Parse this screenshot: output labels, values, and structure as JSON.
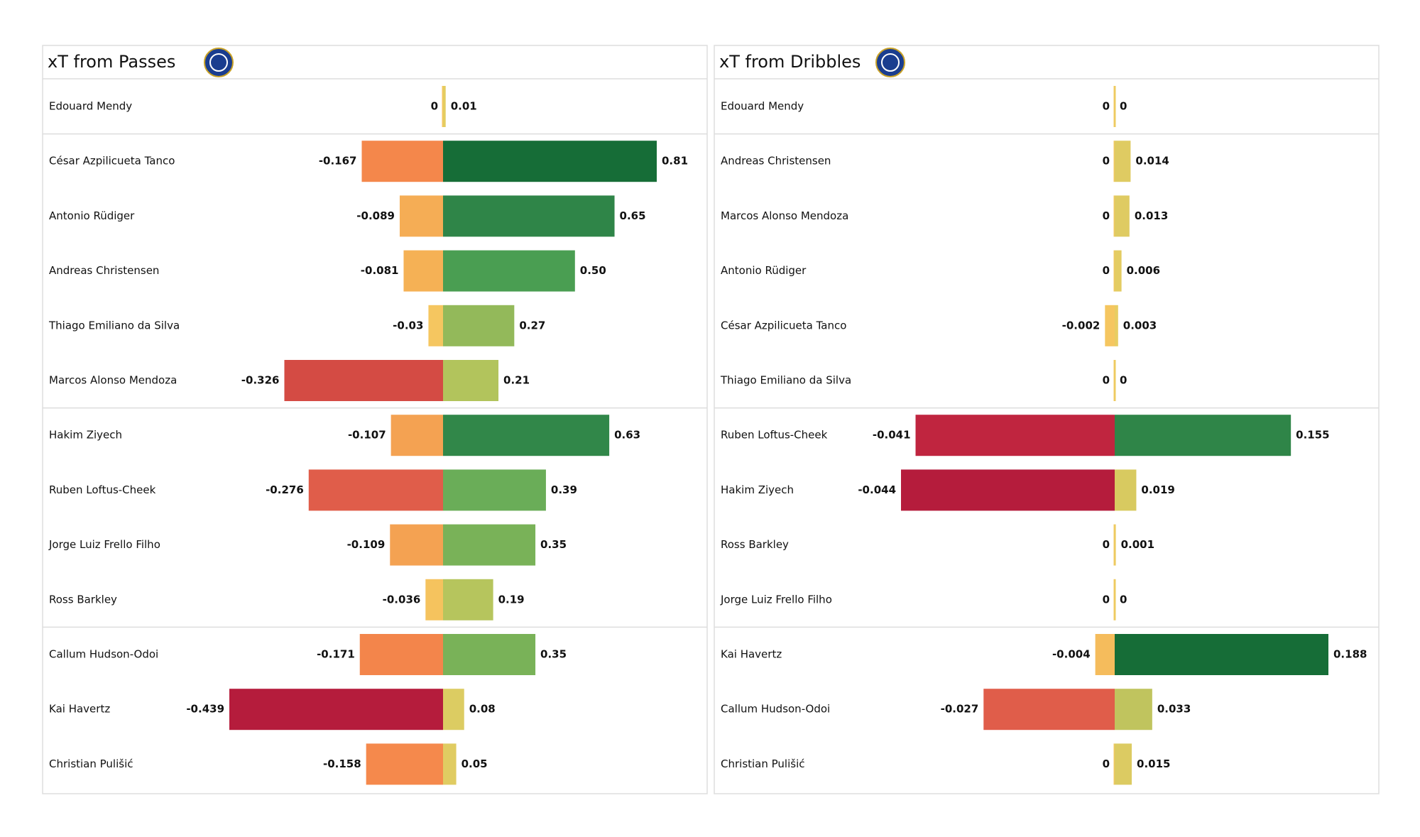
{
  "chart_data": [
    {
      "type": "diverging-bar",
      "title": "xT from Passes",
      "categories": [
        "Edouard Mendy",
        "César Azpilicueta Tanco",
        "Antonio Rüdiger",
        "Andreas Christensen",
        "Thiago Emiliano da Silva",
        "Marcos  Alonso Mendoza",
        "Hakim Ziyech",
        "Ruben Loftus-Cheek",
        "Jorge Luiz Frello Filho",
        "Ross Barkley",
        "Callum Hudson-Odoi",
        "Kai Havertz",
        "Christian Pulišić"
      ],
      "series": [
        {
          "values": [
            0,
            -0.167,
            -0.089,
            -0.081,
            -0.03,
            -0.326,
            -0.107,
            -0.276,
            -0.109,
            -0.036,
            -0.171,
            -0.439,
            -0.158
          ],
          "colors": [
            "#f5c660",
            "#f4874b",
            "#f5ad55",
            "#f5b155",
            "#f5c660",
            "#d44b44",
            "#f4a252",
            "#e05d4a",
            "#f4a252",
            "#f5c35e",
            "#f3854b",
            "#b51c3c",
            "#f5894c"
          ]
        },
        {
          "values": [
            0.01,
            0.81,
            0.65,
            0.5,
            0.27,
            0.21,
            0.63,
            0.39,
            0.35,
            0.19,
            0.35,
            0.08,
            0.05
          ],
          "value_labels": [
            "0.01",
            "0.81",
            "0.65",
            "0.50",
            "0.27",
            "0.21",
            "0.63",
            "0.39",
            "0.35",
            "0.19",
            "0.35",
            "0.08",
            "0.05"
          ],
          "colors": [
            "#e4cd60",
            "#166d37",
            "#2f8548",
            "#4a9e52",
            "#93b95a",
            "#b2c45c",
            "#318749",
            "#6aad58",
            "#79b258",
            "#b6c55d",
            "#79b258",
            "#dccc62",
            "#e0cc62"
          ]
        }
      ]
    },
    {
      "type": "diverging-bar",
      "title": "xT from Dribbles",
      "categories": [
        "Edouard Mendy",
        "Andreas Christensen",
        "Marcos  Alonso Mendoza",
        "Antonio Rüdiger",
        "César Azpilicueta Tanco",
        "Thiago Emiliano da Silva",
        "Ruben Loftus-Cheek",
        "Hakim Ziyech",
        "Ross Barkley",
        "Jorge Luiz Frello Filho",
        "Kai Havertz",
        "Callum Hudson-Odoi",
        "Christian Pulišić"
      ],
      "series": [
        {
          "values": [
            0,
            0,
            0,
            0,
            -0.002,
            0,
            -0.041,
            -0.044,
            0,
            0,
            -0.004,
            -0.027,
            0
          ],
          "colors": [
            "#f0c860",
            "#f0c860",
            "#f0c860",
            "#f0c860",
            "#f5c660",
            "#f0c860",
            "#c0253f",
            "#b51c3c",
            "#f0c860",
            "#f0c860",
            "#f5bc5c",
            "#e05d4a",
            "#f0c860"
          ]
        },
        {
          "values": [
            0,
            0.014,
            0.013,
            0.006,
            0.003,
            0,
            0.155,
            0.019,
            0.001,
            0,
            0.188,
            0.033,
            0.015
          ],
          "colors": [
            "#eccd62",
            "#dfcb62",
            "#dfcb62",
            "#e4cc62",
            "#e8cd62",
            "#eccd62",
            "#2f8548",
            "#d8ca60",
            "#eccd62",
            "#eccd62",
            "#166d37",
            "#c0c45e",
            "#dccb62"
          ]
        }
      ]
    }
  ]
}
